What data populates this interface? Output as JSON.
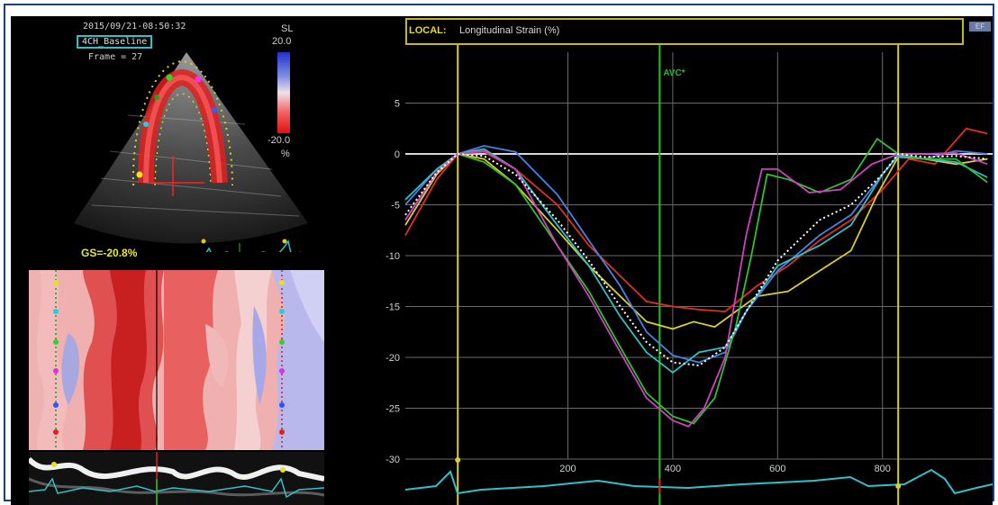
{
  "echo": {
    "timestamp": "2015/09/21-08:50:32",
    "view_label": "4CH_Baseline",
    "frame": "Frame = 27",
    "scale_title": "SL",
    "scale_max": "20.0",
    "scale_min": "-20.0",
    "scale_unit": "%",
    "gs_label": "GS=-20.8%"
  },
  "chart_panel": {
    "header_prefix": "LOCAL:",
    "header_title": "Longitudinal Strain (%)",
    "corner_button": "EF"
  },
  "colors": {
    "red": "#e03020",
    "yellow": "#d8cc30",
    "blue": "#4a80e0",
    "cyan": "#30c0c8",
    "green": "#30c030",
    "magenta": "#d040c0",
    "avg": "#ffffff",
    "marker": "#d8cc30",
    "avc": "#20c020"
  },
  "chart_data": {
    "type": "line",
    "title": "Longitudinal Strain (%)",
    "xlabel": "",
    "ylabel": "",
    "xlim": [
      -110,
      1010
    ],
    "ylim": [
      -30,
      10
    ],
    "x_ticks": [
      200,
      400,
      600,
      800
    ],
    "y_ticks": [
      5,
      0,
      -5,
      -10,
      -15,
      -20,
      -25,
      -30
    ],
    "grid": true,
    "vertical_markers": [
      {
        "x": -10,
        "label": "",
        "color": "yellow"
      },
      {
        "x": 375,
        "label": "AVC*",
        "color": "green"
      },
      {
        "x": 830,
        "label": "",
        "color": "yellow"
      }
    ],
    "series": [
      {
        "color": "red",
        "dashed": false,
        "x": [
          -110,
          -50,
          -10,
          40,
          100,
          180,
          240,
          300,
          350,
          400,
          450,
          500,
          560,
          620,
          680,
          740,
          800,
          850,
          900,
          960,
          1000
        ],
        "y": [
          -8,
          -2.5,
          0,
          0.2,
          -1.5,
          -5,
          -9,
          -12,
          -14.5,
          -15,
          -15.3,
          -15.5,
          -13,
          -11,
          -8.5,
          -6.5,
          -3.5,
          -0.5,
          -1,
          2.5,
          2
        ]
      },
      {
        "color": "yellow",
        "dashed": false,
        "x": [
          -110,
          -50,
          -10,
          40,
          100,
          180,
          240,
          300,
          350,
          400,
          440,
          480,
          520,
          560,
          620,
          680,
          740,
          790,
          830,
          880,
          940,
          1000
        ],
        "y": [
          -7,
          -2,
          0,
          -0.5,
          -3,
          -7.5,
          -11,
          -14,
          -16.5,
          -17.2,
          -16.5,
          -17,
          -15.5,
          -14,
          -13.5,
          -11.5,
          -9.5,
          -4,
          -0.3,
          -0.5,
          -1,
          -0.5
        ]
      },
      {
        "color": "blue",
        "dashed": false,
        "x": [
          -110,
          -50,
          -10,
          40,
          100,
          180,
          240,
          300,
          350,
          400,
          450,
          500,
          540,
          600,
          680,
          740,
          800,
          830,
          880,
          940,
          1000
        ],
        "y": [
          -5,
          -1.5,
          0,
          0.8,
          0.2,
          -4,
          -8.5,
          -13,
          -17.5,
          -19.8,
          -20.5,
          -19.5,
          -15.5,
          -11.5,
          -8,
          -6,
          -2,
          -0.2,
          -0.5,
          0.3,
          0
        ]
      },
      {
        "color": "cyan",
        "dashed": false,
        "x": [
          -110,
          -50,
          -10,
          40,
          100,
          180,
          240,
          300,
          350,
          400,
          450,
          500,
          540,
          600,
          680,
          740,
          800,
          830,
          880,
          940,
          1000
        ],
        "y": [
          -4.5,
          -1.5,
          0,
          0.5,
          -1.5,
          -7,
          -11,
          -16,
          -19.5,
          -21.5,
          -19.5,
          -19,
          -15.5,
          -11,
          -9,
          -7,
          -2,
          -0.1,
          -0.5,
          -0.8,
          -2.3
        ]
      },
      {
        "color": "green",
        "dashed": false,
        "x": [
          -110,
          -50,
          -10,
          40,
          100,
          180,
          240,
          300,
          350,
          400,
          440,
          480,
          520,
          550,
          580,
          620,
          680,
          740,
          790,
          830,
          880,
          940,
          1000
        ],
        "y": [
          -6.5,
          -1.8,
          0,
          -0.8,
          -3,
          -9,
          -13.5,
          -19,
          -23.5,
          -25.8,
          -26.5,
          -24,
          -17,
          -10,
          -2,
          -2.5,
          -3.8,
          -2.5,
          1.5,
          0,
          -0.5,
          -0.5,
          -2.8
        ]
      },
      {
        "color": "magenta",
        "dashed": false,
        "x": [
          -110,
          -50,
          -10,
          40,
          100,
          180,
          240,
          300,
          350,
          400,
          430,
          460,
          500,
          540,
          570,
          600,
          660,
          720,
          780,
          830,
          880,
          940,
          1000
        ],
        "y": [
          -6.5,
          -1.8,
          0,
          0.3,
          -1.5,
          -9,
          -14,
          -19.5,
          -24,
          -26.2,
          -26.8,
          -25,
          -20,
          -8,
          -1.5,
          -1.5,
          -3.8,
          -3.5,
          -1,
          0,
          0,
          0.1,
          -1
        ]
      },
      {
        "color": "avg",
        "dashed": true,
        "x": [
          -110,
          -50,
          -10,
          40,
          100,
          180,
          240,
          300,
          350,
          400,
          450,
          500,
          540,
          600,
          680,
          740,
          800,
          830,
          880,
          940,
          1000
        ],
        "y": [
          -6,
          -1.8,
          0,
          -0.2,
          -2,
          -6.5,
          -10.5,
          -15,
          -18.5,
          -20.5,
          -20.8,
          -19,
          -15.5,
          -10.5,
          -6.5,
          -5,
          -2,
          0,
          -0.3,
          -0.2,
          -0.5
        ]
      }
    ]
  }
}
